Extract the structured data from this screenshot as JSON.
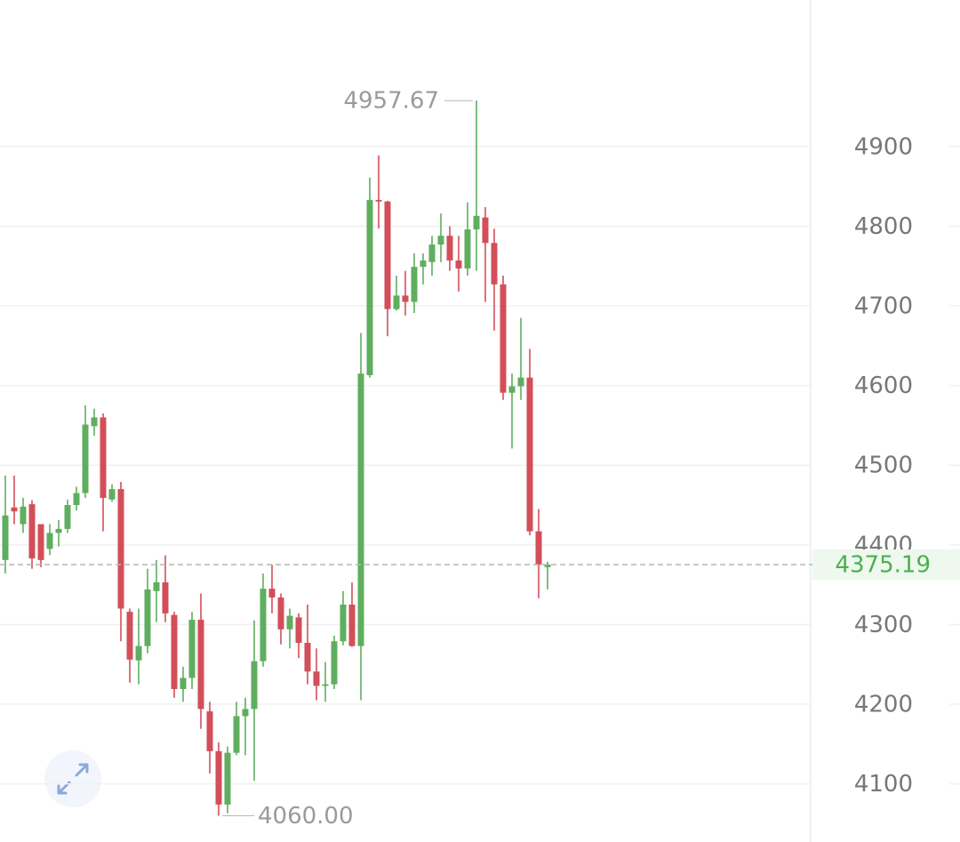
{
  "chart_data": {
    "type": "candlestick",
    "open": [
      4381,
      4447,
      4426,
      4451,
      4426,
      4395,
      4415,
      4420,
      4450,
      4465,
      4549,
      4560,
      4457,
      4470,
      4316,
      4255,
      4273,
      4342,
      4353,
      4312,
      4219,
      4233,
      4306,
      4191,
      4141,
      4074,
      4139,
      4185,
      4194,
      4254,
      4345,
      4334,
      4294,
      4309,
      4277,
      4241,
      4223,
      4225,
      4279,
      4325,
      4273,
      4613,
      4833,
      4831,
      4696,
      4713,
      4705,
      4749,
      4755,
      4777,
      4788,
      4757,
      4747,
      4796,
      4811,
      4779,
      4727,
      4591,
      4599,
      4610,
      4417,
      4372
    ],
    "high": [
      4487,
      4487,
      4459,
      4456,
      4426,
      4426,
      4431,
      4457,
      4473,
      4575,
      4571,
      4565,
      4476,
      4479,
      4320,
      4320,
      4370,
      4381,
      4387,
      4316,
      4247,
      4316,
      4339,
      4203,
      4152,
      4147,
      4203,
      4208,
      4305,
      4364,
      4375,
      4339,
      4320,
      4314,
      4325,
      4270,
      4253,
      4286,
      4342,
      4353,
      4666,
      4861,
      4889,
      4832,
      4738,
      4744,
      4766,
      4766,
      4788,
      4816,
      4800,
      4788,
      4830,
      4957.67,
      4824,
      4797,
      4738,
      4615,
      4685,
      4646,
      4445,
      4379
    ],
    "low": [
      4364,
      4426,
      4415,
      4370,
      4372,
      4387,
      4398,
      4415,
      4443,
      4459,
      4537,
      4417,
      4454,
      4279,
      4227,
      4225,
      4264,
      4303,
      4303,
      4208,
      4203,
      4219,
      4169,
      4113,
      4060,
      4063,
      4136,
      4136,
      4104,
      4247,
      4314,
      4275,
      4270,
      4258,
      4225,
      4205,
      4203,
      4219,
      4274,
      4272,
      4205,
      4610,
      4797,
      4662,
      4694,
      4688,
      4691,
      4727,
      4738,
      4755,
      4744,
      4718,
      4738,
      4744,
      4705,
      4669,
      4582,
      4521,
      4582,
      4412,
      4333,
      4344
    ],
    "close": [
      4437,
      4442,
      4448,
      4383,
      4381,
      4415,
      4420,
      4450,
      4465,
      4551,
      4560,
      4459,
      4470,
      4320,
      4256,
      4273,
      4344,
      4353,
      4314,
      4219,
      4233,
      4306,
      4194,
      4141,
      4074,
      4139,
      4185,
      4194,
      4254,
      4345,
      4334,
      4294,
      4311,
      4277,
      4241,
      4223,
      4225,
      4279,
      4325,
      4273,
      4615,
      4833,
      4831,
      4696,
      4713,
      4705,
      4749,
      4757,
      4777,
      4788,
      4757,
      4747,
      4796,
      4813,
      4779,
      4727,
      4591,
      4599,
      4610,
      4417,
      4375,
      4375.19
    ],
    "up_color": "#5fae5f",
    "down_color": "#d24f59",
    "ylim": [
      4027,
      5084
    ],
    "yticks": [
      4100,
      4200,
      4300,
      4400,
      4500,
      4600,
      4700,
      4800,
      4900
    ],
    "grid": true,
    "max_annotation": {
      "value": 4957.67,
      "label": "4957.67"
    },
    "min_annotation": {
      "value": 4060,
      "label": "4060.00"
    }
  }
}
